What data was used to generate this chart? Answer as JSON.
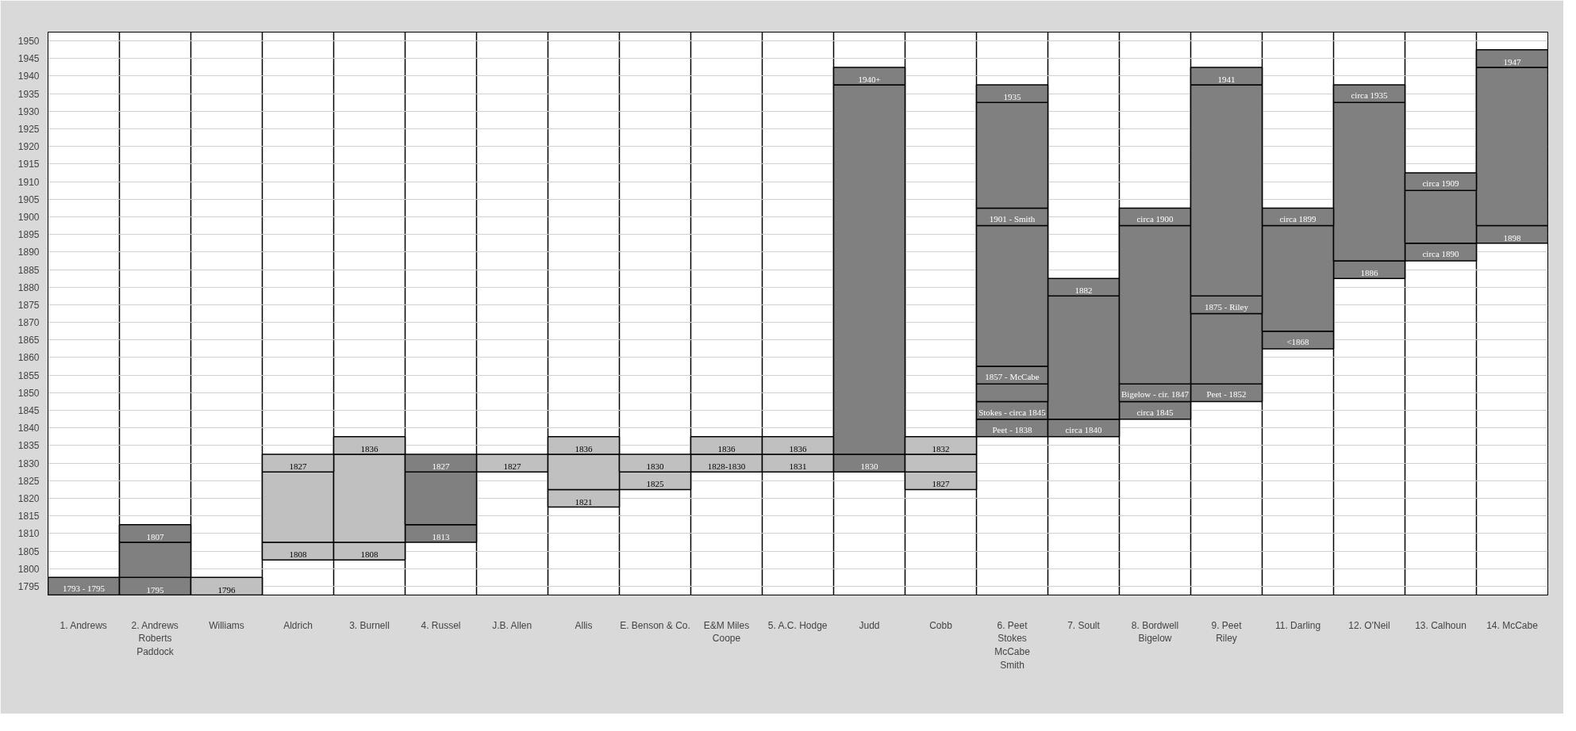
{
  "chart_data": {
    "type": "bar",
    "categories": [
      "1. Andrews",
      "2. Andrews\nRoberts\nPaddock",
      "Williams",
      "Aldrich",
      "3. Burnell",
      "4. Russel",
      "J.B. Allen",
      "Allis",
      "E. Benson & Co.",
      "E&M Miles\nCoope",
      "5. A.C. Hodge",
      "Judd",
      "Cobb",
      "6. Peet\nStokes\nMcCabe\nSmith",
      "7. Soult",
      "8. Bordwell\nBigelow",
      "9. Peet\nRiley",
      "11. Darling",
      "12. O'Neil",
      "13. Calhoun",
      "14. McCabe"
    ],
    "ylim": [
      1792.5,
      1952.5
    ],
    "yticks": [
      1795,
      1800,
      1805,
      1810,
      1815,
      1820,
      1825,
      1830,
      1835,
      1840,
      1845,
      1850,
      1855,
      1860,
      1865,
      1870,
      1875,
      1880,
      1885,
      1890,
      1895,
      1900,
      1905,
      1910,
      1915,
      1920,
      1925,
      1930,
      1935,
      1940,
      1945,
      1950
    ],
    "grid": "y",
    "series": [
      {
        "base": [
          1792.5,
          1792.5,
          1792.5,
          1802.5,
          1802.5,
          1807.5,
          1827.5,
          1817.5,
          1822.5,
          1827.5,
          1827.5,
          1827.5,
          1822.5,
          1837.5,
          1837.5,
          1842.5,
          1847.5,
          1862.5,
          1882.5,
          1887.5,
          1892.5
        ],
        "values": [
          5,
          5,
          5,
          5,
          5,
          5,
          5,
          5,
          5,
          5,
          5,
          5,
          5,
          5,
          5,
          5,
          5,
          5,
          5,
          5,
          5
        ],
        "colors": [
          "#808080",
          "#808080",
          "#c0c0c0",
          "#c0c0c0",
          "#c0c0c0",
          "#808080",
          "#c0c0c0",
          "#c0c0c0",
          "#c0c0c0",
          "#c0c0c0",
          "#c0c0c0",
          "#808080",
          "#c0c0c0",
          "#808080",
          "#808080",
          "#808080",
          "#808080",
          "#808080",
          "#808080",
          "#808080",
          "#808080"
        ]
      },
      {
        "base": [
          null,
          1797.5,
          null,
          1807.5,
          1807.5,
          1812.5,
          null,
          1822.5,
          1827.5,
          1832.5,
          1832.5,
          1832.5,
          1827.5,
          1842.5,
          1842.5,
          1847.5,
          1852.5,
          1867.5,
          1887.5,
          1892.5,
          1897.5
        ],
        "values": [
          null,
          10,
          null,
          20,
          25,
          15,
          null,
          10,
          5,
          5,
          5,
          105,
          5,
          5,
          35,
          5,
          20,
          30,
          45,
          15,
          45
        ],
        "colors": [
          null,
          "#808080",
          null,
          "#c0c0c0",
          "#c0c0c0",
          "#808080",
          null,
          "#c0c0c0",
          "#c0c0c0",
          "#c0c0c0",
          "#c0c0c0",
          "#808080",
          "#c0c0c0",
          "#808080",
          "#808080",
          "#808080",
          "#808080",
          "#808080",
          "#808080",
          "#808080",
          "#808080"
        ]
      },
      {
        "base": [
          null,
          1807.5,
          null,
          1827.5,
          1832.5,
          1827.5,
          null,
          1832.5,
          null,
          null,
          null,
          1937.5,
          1832.5,
          1847.5,
          1877.5,
          1852.5,
          1872.5,
          1897.5,
          1932.5,
          1907.5,
          1942.5
        ],
        "values": [
          null,
          5,
          null,
          5,
          5,
          5,
          null,
          5,
          null,
          null,
          null,
          5,
          5,
          5,
          5,
          45,
          5,
          5,
          5,
          5,
          5
        ],
        "colors": [
          null,
          "#808080",
          null,
          "#c0c0c0",
          "#c0c0c0",
          "#808080",
          null,
          "#c0c0c0",
          null,
          null,
          null,
          "#808080",
          "#c0c0c0",
          "#808080",
          "#808080",
          "#808080",
          "#808080",
          "#808080",
          "#808080",
          "#808080",
          "#808080"
        ]
      },
      {
        "base": [
          null,
          null,
          null,
          null,
          null,
          null,
          null,
          null,
          null,
          null,
          null,
          null,
          null,
          1852.5,
          null,
          1897.5,
          1877.5,
          null,
          null,
          null,
          null
        ],
        "values": [
          null,
          null,
          null,
          null,
          null,
          null,
          null,
          null,
          null,
          null,
          null,
          null,
          null,
          5,
          null,
          5,
          60,
          null,
          null,
          null,
          null
        ],
        "colors": [
          null,
          null,
          null,
          null,
          null,
          null,
          null,
          null,
          null,
          null,
          null,
          null,
          null,
          "#808080",
          null,
          "#808080",
          "#808080",
          null,
          null,
          null,
          null
        ]
      },
      {
        "base": [
          null,
          null,
          null,
          null,
          null,
          null,
          null,
          null,
          null,
          null,
          null,
          null,
          null,
          1857.5,
          null,
          null,
          1937.5,
          null,
          null,
          null,
          null
        ],
        "values": [
          null,
          null,
          null,
          null,
          null,
          null,
          null,
          null,
          null,
          null,
          null,
          null,
          null,
          40,
          null,
          null,
          5,
          null,
          null,
          null,
          null
        ],
        "colors": [
          null,
          null,
          null,
          null,
          null,
          null,
          null,
          null,
          null,
          null,
          null,
          null,
          null,
          "#808080",
          null,
          null,
          "#808080",
          null,
          null,
          null,
          null
        ]
      },
      {
        "base": [
          null,
          null,
          null,
          null,
          null,
          null,
          null,
          null,
          null,
          null,
          null,
          null,
          null,
          1897.5,
          null,
          null,
          null,
          null,
          null,
          null,
          null
        ],
        "values": [
          null,
          null,
          null,
          null,
          null,
          null,
          null,
          null,
          null,
          null,
          null,
          null,
          null,
          5,
          null,
          null,
          null,
          null,
          null,
          null,
          null
        ],
        "colors": [
          null,
          null,
          null,
          null,
          null,
          null,
          null,
          null,
          null,
          null,
          null,
          null,
          null,
          "#808080",
          null,
          null,
          null,
          null,
          null,
          null,
          null
        ]
      },
      {
        "base": [
          null,
          null,
          null,
          null,
          null,
          null,
          null,
          null,
          null,
          null,
          null,
          null,
          null,
          1902.5,
          null,
          null,
          null,
          null,
          null,
          null,
          null
        ],
        "values": [
          null,
          null,
          null,
          null,
          null,
          null,
          null,
          null,
          null,
          null,
          null,
          null,
          null,
          30,
          null,
          null,
          null,
          null,
          null,
          null,
          null
        ],
        "colors": [
          null,
          null,
          null,
          null,
          null,
          null,
          null,
          null,
          null,
          null,
          null,
          null,
          null,
          "#808080",
          null,
          null,
          null,
          null,
          null,
          null,
          null
        ]
      },
      {
        "base": [
          null,
          null,
          null,
          null,
          null,
          null,
          null,
          null,
          null,
          null,
          null,
          null,
          null,
          1932.5,
          null,
          null,
          null,
          null,
          null,
          null,
          null
        ],
        "values": [
          null,
          null,
          null,
          null,
          null,
          null,
          null,
          null,
          null,
          null,
          null,
          null,
          null,
          5,
          null,
          null,
          null,
          null,
          null,
          null,
          null
        ],
        "colors": [
          null,
          null,
          null,
          null,
          null,
          null,
          null,
          null,
          null,
          null,
          null,
          null,
          null,
          "#808080",
          null,
          null,
          null,
          null,
          null,
          null,
          null
        ]
      }
    ],
    "annotations": [
      {
        "text": "1793 - 1795",
        "x": "1. Andrews",
        "y": 1792.5
      },
      {
        "text": "1795",
        "x": "2. Andrews\nRoberts\nPaddock",
        "y": 1792.5
      },
      {
        "text": "1807",
        "x": "2. Andrews\nRoberts\nPaddock",
        "y": 1807.5
      },
      {
        "text": "1796",
        "x": "Williams",
        "y": 1792.5
      },
      {
        "text": "1808",
        "x": "Aldrich",
        "y": 1802.5
      },
      {
        "text": "1827",
        "x": "Aldrich",
        "y": 1827.5
      },
      {
        "text": "1808",
        "x": "3. Burnell",
        "y": 1802.5
      },
      {
        "text": "1836",
        "x": "3. Burnell",
        "y": 1832.5
      },
      {
        "text": "1813",
        "x": "4. Russel",
        "y": 1807.5
      },
      {
        "text": "1827",
        "x": "4. Russel",
        "y": 1827.5
      },
      {
        "text": "1827",
        "x": "J.B. Allen",
        "y": 1827.5
      },
      {
        "text": "1821",
        "x": "Allis",
        "y": 1817.5
      },
      {
        "text": "1836",
        "x": "Allis",
        "y": 1832.5
      },
      {
        "text": "1825",
        "x": "E. Benson & Co.",
        "y": 1822.5
      },
      {
        "text": "1830",
        "x": "E. Benson & Co.",
        "y": 1827.5
      },
      {
        "text": "1828-1830",
        "x": "E&M Miles\nCoope",
        "y": 1827.5
      },
      {
        "text": "1836",
        "x": "E&M Miles\nCoope",
        "y": 1832.5
      },
      {
        "text": "1831",
        "x": "5. A.C. Hodge",
        "y": 1827.5
      },
      {
        "text": "1836",
        "x": "5. A.C. Hodge",
        "y": 1832.5
      },
      {
        "text": "1830",
        "x": "Judd",
        "y": 1827.5
      },
      {
        "text": "1940+",
        "x": "Judd",
        "y": 1937.5
      },
      {
        "text": "1827",
        "x": "Cobb",
        "y": 1822.5
      },
      {
        "text": "1832",
        "x": "Cobb",
        "y": 1832.5
      },
      {
        "text": "Peet - 1838",
        "x": "6. Peet\nStokes\nMcCabe\nSmith",
        "y": 1837.5
      },
      {
        "text": "Stokes - circa 1845",
        "x": "6. Peet\nStokes\nMcCabe\nSmith",
        "y": 1842.5
      },
      {
        "text": "1857 - McCabe",
        "x": "6. Peet\nStokes\nMcCabe\nSmith",
        "y": 1852.5
      },
      {
        "text": "1901 - Smith",
        "x": "6. Peet\nStokes\nMcCabe\nSmith",
        "y": 1897.5
      },
      {
        "text": "1935",
        "x": "6. Peet\nStokes\nMcCabe\nSmith",
        "y": 1932.5
      },
      {
        "text": "circa 1840",
        "x": "7. Soult",
        "y": 1837.5
      },
      {
        "text": "1882",
        "x": "7. Soult",
        "y": 1877.5
      },
      {
        "text": "circa 1845",
        "x": "8. Bordwell\nBigelow",
        "y": 1842.5
      },
      {
        "text": "Bigelow - cir. 1847",
        "x": "8. Bordwell\nBigelow",
        "y": 1847.5
      },
      {
        "text": "circa 1900",
        "x": "8. Bordwell\nBigelow",
        "y": 1897.5
      },
      {
        "text": "Peet - 1852",
        "x": "9. Peet\nRiley",
        "y": 1847.5
      },
      {
        "text": "1875 - Riley",
        "x": "9. Peet\nRiley",
        "y": 1872.5
      },
      {
        "text": "1941",
        "x": "9. Peet\nRiley",
        "y": 1937.5
      },
      {
        "text": "<1868",
        "x": "11. Darling",
        "y": 1862.5
      },
      {
        "text": "circa 1899",
        "x": "11. Darling",
        "y": 1897.5
      },
      {
        "text": "1886",
        "x": "12. O'Neil",
        "y": 1882.5
      },
      {
        "text": "circa 1935",
        "x": "12. O'Neil",
        "y": 1932.5
      },
      {
        "text": "circa 1890",
        "x": "13. Calhoun",
        "y": 1887.5
      },
      {
        "text": "circa 1909",
        "x": "13. Calhoun",
        "y": 1907.5
      },
      {
        "text": "1898",
        "x": "14. McCabe",
        "y": 1892.5
      },
      {
        "text": "1947",
        "x": "14. McCabe",
        "y": 1942.5
      }
    ]
  }
}
